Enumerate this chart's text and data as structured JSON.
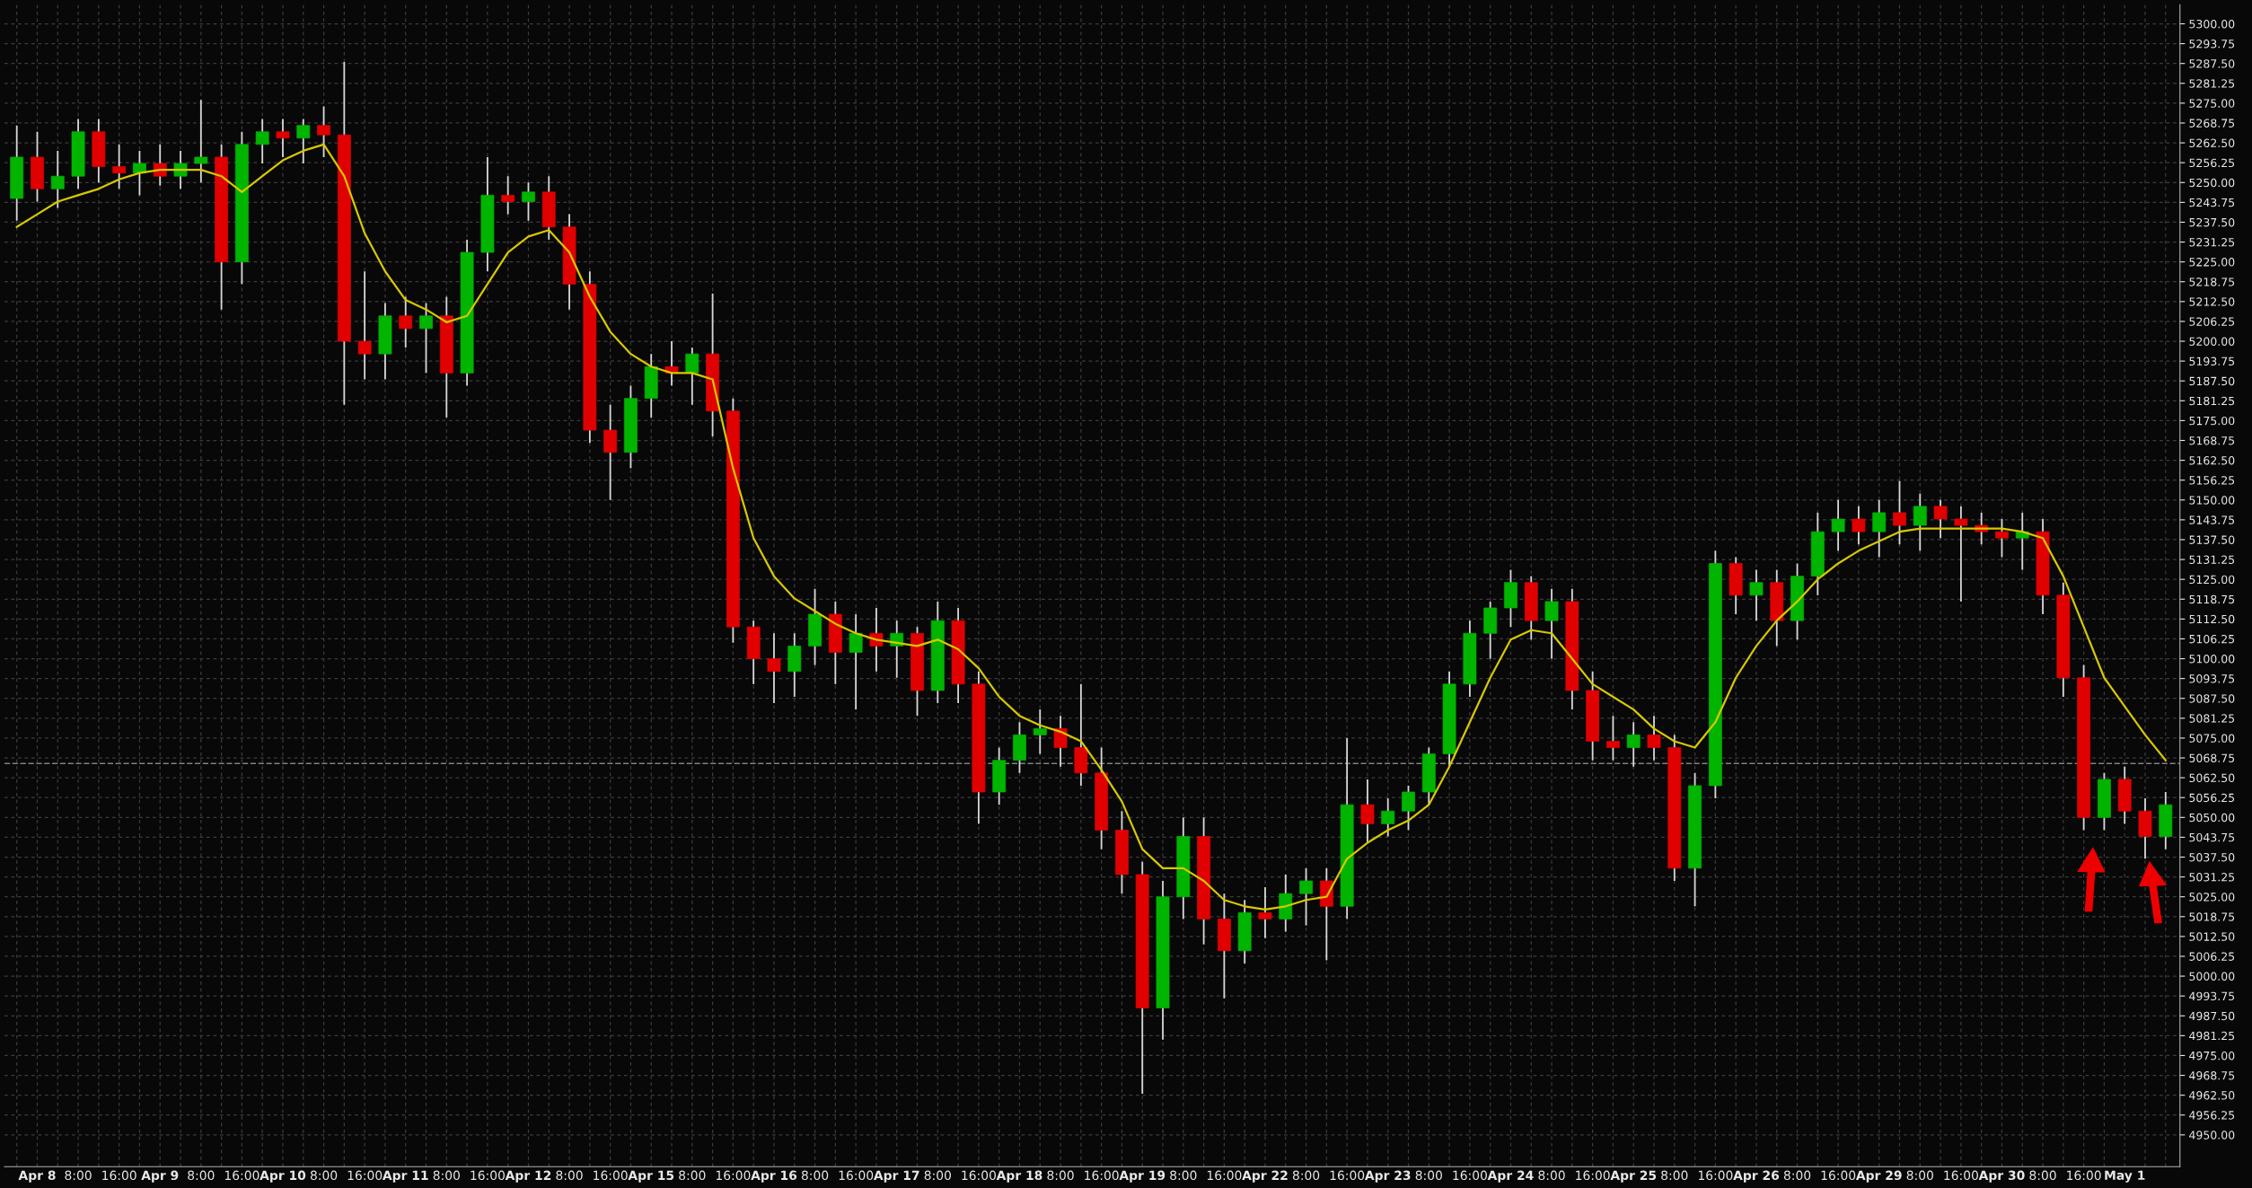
{
  "chart_data": {
    "type": "candlestick",
    "categories": [
      null,
      "Apr 8",
      null,
      "8:00",
      null,
      "16:00",
      null,
      "Apr 9",
      null,
      "8:00",
      null,
      "16:00",
      null,
      "Apr 10",
      null,
      "8:00",
      null,
      "16:00",
      null,
      "Apr 11",
      null,
      "8:00",
      null,
      "16:00",
      null,
      "Apr 12",
      null,
      "8:00",
      null,
      "16:00",
      null,
      "Apr 15",
      null,
      "8:00",
      null,
      "16:00",
      null,
      "Apr 16",
      null,
      "8:00",
      null,
      "16:00",
      null,
      "Apr 17",
      null,
      "8:00",
      null,
      "16:00",
      null,
      "Apr 18",
      null,
      "8:00",
      null,
      "16:00",
      null,
      "Apr 19",
      null,
      "8:00",
      null,
      "16:00",
      null,
      "Apr 22",
      null,
      "8:00",
      null,
      "16:00",
      null,
      "Apr 23",
      null,
      "8:00",
      null,
      "16:00",
      null,
      "Apr 24",
      null,
      "8:00",
      null,
      "16:00",
      null,
      "Apr 25",
      null,
      "8:00",
      null,
      "16:00",
      null,
      "Apr 26",
      null,
      "8:00",
      null,
      "16:00",
      null,
      "Apr 29",
      null,
      "8:00",
      null,
      "16:00",
      null,
      "Apr 30",
      null,
      "8:00",
      null,
      "16:00",
      null,
      "May 1",
      null,
      null
    ],
    "ohlc": [
      [
        5245,
        5268,
        5238,
        5258
      ],
      [
        5258,
        5266,
        5244,
        5248
      ],
      [
        5248,
        5260,
        5242,
        5252
      ],
      [
        5252,
        5270,
        5248,
        5266
      ],
      [
        5266,
        5270,
        5250,
        5255
      ],
      [
        5255,
        5262,
        5248,
        5253
      ],
      [
        5253,
        5260,
        5246,
        5256
      ],
      [
        5256,
        5262,
        5249,
        5252
      ],
      [
        5252,
        5260,
        5248,
        5256
      ],
      [
        5256,
        5276,
        5250,
        5258
      ],
      [
        5258,
        5262,
        5210,
        5225
      ],
      [
        5225,
        5266,
        5218,
        5262
      ],
      [
        5262,
        5270,
        5256,
        5266
      ],
      [
        5266,
        5270,
        5258,
        5264
      ],
      [
        5264,
        5270,
        5256,
        5268
      ],
      [
        5268,
        5274,
        5258,
        5265
      ],
      [
        5265,
        5288,
        5180,
        5200
      ],
      [
        5200,
        5222,
        5188,
        5196
      ],
      [
        5196,
        5212,
        5188,
        5208
      ],
      [
        5208,
        5214,
        5198,
        5204
      ],
      [
        5204,
        5212,
        5190,
        5208
      ],
      [
        5208,
        5214,
        5176,
        5190
      ],
      [
        5190,
        5232,
        5186,
        5228
      ],
      [
        5228,
        5258,
        5222,
        5246
      ],
      [
        5246,
        5252,
        5240,
        5244
      ],
      [
        5244,
        5250,
        5238,
        5247
      ],
      [
        5247,
        5252,
        5232,
        5236
      ],
      [
        5236,
        5240,
        5210,
        5218
      ],
      [
        5218,
        5222,
        5168,
        5172
      ],
      [
        5172,
        5180,
        5150,
        5165
      ],
      [
        5165,
        5186,
        5160,
        5182
      ],
      [
        5182,
        5196,
        5176,
        5192
      ],
      [
        5192,
        5200,
        5186,
        5190
      ],
      [
        5190,
        5198,
        5180,
        5196
      ],
      [
        5196,
        5215,
        5170,
        5178
      ],
      [
        5178,
        5182,
        5105,
        5110
      ],
      [
        5110,
        5112,
        5092,
        5100
      ],
      [
        5100,
        5108,
        5086,
        5096
      ],
      [
        5096,
        5108,
        5088,
        5104
      ],
      [
        5104,
        5122,
        5098,
        5114
      ],
      [
        5114,
        5118,
        5092,
        5102
      ],
      [
        5102,
        5114,
        5084,
        5108
      ],
      [
        5108,
        5116,
        5096,
        5104
      ],
      [
        5104,
        5112,
        5094,
        5108
      ],
      [
        5108,
        5110,
        5082,
        5090
      ],
      [
        5090,
        5118,
        5086,
        5112
      ],
      [
        5112,
        5116,
        5086,
        5092
      ],
      [
        5092,
        5096,
        5048,
        5058
      ],
      [
        5058,
        5072,
        5054,
        5068
      ],
      [
        5068,
        5080,
        5064,
        5076
      ],
      [
        5076,
        5084,
        5070,
        5078
      ],
      [
        5078,
        5082,
        5066,
        5072
      ],
      [
        5072,
        5092,
        5060,
        5064
      ],
      [
        5064,
        5072,
        5040,
        5046
      ],
      [
        5046,
        5052,
        5026,
        5032
      ],
      [
        5032,
        5036,
        4963,
        4990
      ],
      [
        4990,
        5030,
        4980,
        5025
      ],
      [
        5025,
        5050,
        5018,
        5044
      ],
      [
        5044,
        5050,
        5010,
        5018
      ],
      [
        5018,
        5026,
        4993,
        5008
      ],
      [
        5008,
        5024,
        5004,
        5020
      ],
      [
        5020,
        5028,
        5012,
        5018
      ],
      [
        5018,
        5032,
        5014,
        5026
      ],
      [
        5026,
        5034,
        5016,
        5030
      ],
      [
        5030,
        5034,
        5005,
        5022
      ],
      [
        5022,
        5075,
        5018,
        5054
      ],
      [
        5054,
        5062,
        5042,
        5048
      ],
      [
        5048,
        5056,
        5044,
        5052
      ],
      [
        5052,
        5060,
        5046,
        5058
      ],
      [
        5058,
        5072,
        5054,
        5070
      ],
      [
        5070,
        5096,
        5066,
        5092
      ],
      [
        5092,
        5112,
        5088,
        5108
      ],
      [
        5108,
        5118,
        5100,
        5116
      ],
      [
        5116,
        5128,
        5110,
        5124
      ],
      [
        5124,
        5126,
        5106,
        5112
      ],
      [
        5112,
        5122,
        5100,
        5118
      ],
      [
        5118,
        5122,
        5084,
        5090
      ],
      [
        5090,
        5096,
        5068,
        5074
      ],
      [
        5074,
        5082,
        5068,
        5072
      ],
      [
        5072,
        5080,
        5066,
        5076
      ],
      [
        5076,
        5082,
        5068,
        5072
      ],
      [
        5072,
        5076,
        5030,
        5034
      ],
      [
        5034,
        5064,
        5022,
        5060
      ],
      [
        5060,
        5134,
        5056,
        5130
      ],
      [
        5130,
        5132,
        5114,
        5120
      ],
      [
        5120,
        5128,
        5112,
        5124
      ],
      [
        5124,
        5128,
        5104,
        5112
      ],
      [
        5112,
        5130,
        5106,
        5126
      ],
      [
        5126,
        5146,
        5120,
        5140
      ],
      [
        5140,
        5150,
        5134,
        5144
      ],
      [
        5144,
        5148,
        5136,
        5140
      ],
      [
        5140,
        5150,
        5132,
        5146
      ],
      [
        5146,
        5156,
        5136,
        5142
      ],
      [
        5142,
        5152,
        5134,
        5148
      ],
      [
        5148,
        5150,
        5138,
        5144
      ],
      [
        5144,
        5148,
        5118,
        5142
      ],
      [
        5142,
        5146,
        5136,
        5140
      ],
      [
        5140,
        5144,
        5132,
        5138
      ],
      [
        5138,
        5146,
        5128,
        5140
      ],
      [
        5140,
        5144,
        5114,
        5120
      ],
      [
        5120,
        5124,
        5088,
        5094
      ],
      [
        5094,
        5098,
        5046,
        5050
      ],
      [
        5050,
        5064,
        5046,
        5062
      ],
      [
        5062,
        5066,
        5048,
        5052
      ],
      [
        5052,
        5056,
        5037,
        5044
      ],
      [
        5044,
        5058,
        5040,
        5054
      ]
    ],
    "colors": [
      "#00b400",
      "#e00000",
      "#00b400",
      "#00b400",
      "#e00000",
      "#e00000",
      "#00b400",
      "#e00000",
      "#00b400",
      "#00b400",
      "#e00000",
      "#00b400",
      "#00b400",
      "#e00000",
      "#00b400",
      "#e00000",
      "#e00000",
      "#e00000",
      "#00b400",
      "#e00000",
      "#00b400",
      "#e00000",
      "#00b400",
      "#00b400",
      "#e00000",
      "#00b400",
      "#e00000",
      "#e00000",
      "#e00000",
      "#e00000",
      "#00b400",
      "#00b400",
      "#e00000",
      "#00b400",
      "#e00000",
      "#e00000",
      "#e00000",
      "#e00000",
      "#00b400",
      "#00b400",
      "#e00000",
      "#00b400",
      "#e00000",
      "#00b400",
      "#e00000",
      "#00b400",
      "#e00000",
      "#e00000",
      "#00b400",
      "#00b400",
      "#00b400",
      "#e00000",
      "#e00000",
      "#e00000",
      "#e00000",
      "#e00000",
      "#00b400",
      "#00b400",
      "#e00000",
      "#e00000",
      "#00b400",
      "#e00000",
      "#00b400",
      "#00b400",
      "#e00000",
      "#00b400",
      "#e00000",
      "#00b400",
      "#00b400",
      "#00b400",
      "#00b400",
      "#00b400",
      "#00b400",
      "#00b400",
      "#e00000",
      "#00b400",
      "#e00000",
      "#e00000",
      "#e00000",
      "#00b400",
      "#e00000",
      "#e00000",
      "#00b400",
      "#00b400",
      "#e00000",
      "#00b400",
      "#e00000",
      "#00b400",
      "#00b400",
      "#00b400",
      "#e00000",
      "#00b400",
      "#e00000",
      "#00b400",
      "#e00000",
      "#e00000",
      "#e00000",
      "#e00000",
      "#00b400",
      "#e00000",
      "#e00000",
      "#e00000",
      "#00b400",
      "#e00000",
      "#e00000",
      "#00b400"
    ],
    "series": [
      {
        "type": "line",
        "color": "#d8c800",
        "values": [
          5236,
          5240,
          5244,
          5246,
          5248,
          5251,
          5253,
          5254,
          5254,
          5254,
          5252,
          5247,
          5252,
          5257,
          5260,
          5262,
          5252,
          5234,
          5222,
          5213,
          5210,
          5206,
          5208,
          5218,
          5228,
          5233,
          5235,
          5228,
          5214,
          5203,
          5196,
          5192,
          5190,
          5190,
          5188,
          5160,
          5138,
          5126,
          5119,
          5115,
          5111,
          5108,
          5106,
          5105,
          5104,
          5106,
          5103,
          5097,
          5088,
          5082,
          5079,
          5077,
          5074,
          5065,
          5055,
          5040,
          5034,
          5034,
          5030,
          5024,
          5022,
          5021,
          5022,
          5024,
          5025,
          5037,
          5042,
          5046,
          5049,
          5054,
          5066,
          5080,
          5094,
          5106,
          5109,
          5108,
          5100,
          5092,
          5088,
          5084,
          5078,
          5074,
          5072,
          5080,
          5094,
          5104,
          5112,
          5118,
          5125,
          5130,
          5134,
          5137,
          5140,
          5141,
          5141,
          5141,
          5141,
          5141,
          5140,
          5138,
          5126,
          5110,
          5094,
          5085,
          5076,
          5068
        ]
      }
    ],
    "ylim": [
      4940,
      5306
    ],
    "yticks": [
      {
        "value": 4950,
        "label": "4950.00"
      },
      {
        "value": 4956.25,
        "label": "4956.25"
      },
      {
        "value": 4962.5,
        "label": "4962.50"
      },
      {
        "value": 4968.75,
        "label": "4968.75"
      },
      {
        "value": 4975,
        "label": "4975.00"
      },
      {
        "value": 4981.25,
        "label": "4981.25"
      },
      {
        "value": 4987.5,
        "label": "4987.50"
      },
      {
        "value": 4993.75,
        "label": "4993.75"
      },
      {
        "value": 5000,
        "label": "5000.00"
      },
      {
        "value": 5006.25,
        "label": "5006.25"
      },
      {
        "value": 5012.5,
        "label": "5012.50"
      },
      {
        "value": 5018.75,
        "label": "5018.75"
      },
      {
        "value": 5025,
        "label": "5025.00"
      },
      {
        "value": 5031.25,
        "label": "5031.25"
      },
      {
        "value": 5037.5,
        "label": "5037.50"
      },
      {
        "value": 5043.75,
        "label": "5043.75"
      },
      {
        "value": 5050,
        "label": "5050.00"
      },
      {
        "value": 5056.25,
        "label": "5056.25"
      },
      {
        "value": 5062.5,
        "label": "5062.50"
      },
      {
        "value": 5068.75,
        "label": "5068.75"
      },
      {
        "value": 5075,
        "label": "5075.00"
      },
      {
        "value": 5081.25,
        "label": "5081.25"
      },
      {
        "value": 5087.5,
        "label": "5087.50"
      },
      {
        "value": 5093.75,
        "label": "5093.75"
      },
      {
        "value": 5100,
        "label": "5100.00"
      },
      {
        "value": 5106.25,
        "label": "5106.25"
      },
      {
        "value": 5112.5,
        "label": "5112.50"
      },
      {
        "value": 5118.75,
        "label": "5118.75"
      },
      {
        "value": 5125,
        "label": "5125.00"
      },
      {
        "value": 5131.25,
        "label": "5131.25"
      },
      {
        "value": 5137.5,
        "label": "5137.50"
      },
      {
        "value": 5143.75,
        "label": "5143.75"
      },
      {
        "value": 5150,
        "label": "5150.00"
      },
      {
        "value": 5156.25,
        "label": "5156.25"
      },
      {
        "value": 5162.5,
        "label": "5162.50"
      },
      {
        "value": 5168.75,
        "label": "5168.75"
      },
      {
        "value": 5175,
        "label": "5175.00"
      },
      {
        "value": 5181.25,
        "label": "5181.25"
      },
      {
        "value": 5187.5,
        "label": "5187.50"
      },
      {
        "value": 5193.75,
        "label": "5193.75"
      },
      {
        "value": 5200,
        "label": "5200.00"
      },
      {
        "value": 5206.25,
        "label": "5206.25"
      },
      {
        "value": 5212.5,
        "label": "5212.50"
      },
      {
        "value": 5218.75,
        "label": "5218.75"
      },
      {
        "value": 5225,
        "label": "5225.00"
      },
      {
        "value": 5231.25,
        "label": "5231.25"
      },
      {
        "value": 5237.5,
        "label": "5237.50"
      },
      {
        "value": 5243.75,
        "label": "5243.75"
      },
      {
        "value": 5250,
        "label": "5250.00"
      },
      {
        "value": 5256.25,
        "label": "5256.25"
      },
      {
        "value": 5262.5,
        "label": "5262.50"
      },
      {
        "value": 5268.75,
        "label": "5268.75"
      },
      {
        "value": 5275,
        "label": "5275.00"
      },
      {
        "value": 5281.25,
        "label": "5281.25"
      },
      {
        "value": 5287.5,
        "label": "5287.50"
      },
      {
        "value": 5293.75,
        "label": "5293.75"
      },
      {
        "value": 5300,
        "label": "5300.00"
      }
    ],
    "grid": true,
    "ref_lines": [
      {
        "axis": "y",
        "value": 5067,
        "label": null,
        "color": "#808080",
        "line_style": "dashed"
      }
    ]
  }
}
